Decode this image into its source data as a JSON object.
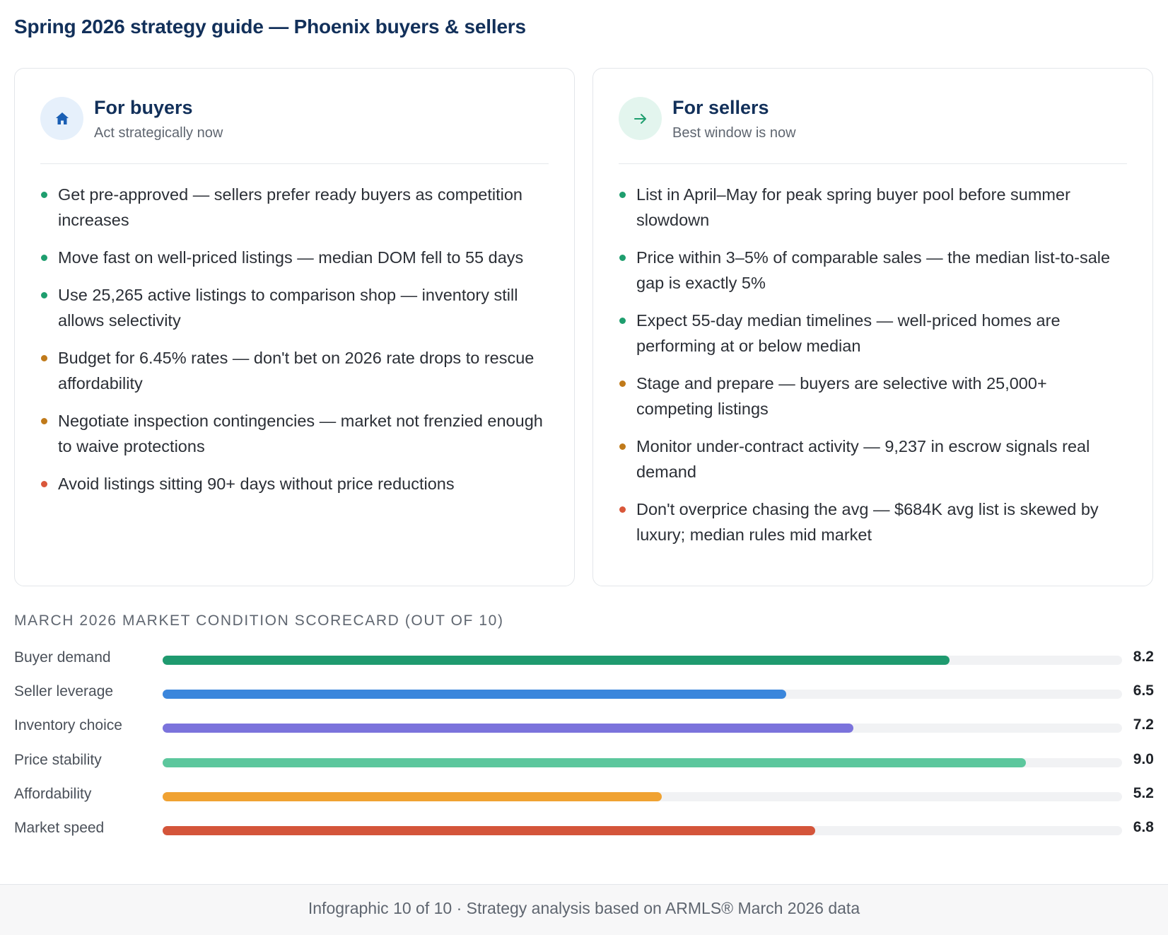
{
  "page": {
    "title": "Spring 2026 strategy guide — Phoenix buyers & sellers"
  },
  "buyers": {
    "icon": "home-icon",
    "accent": "#1a5fb4",
    "title": "For buyers",
    "subtitle": "Act strategically now",
    "items": [
      {
        "text": "Get pre-approved — sellers prefer ready buyers as competition increases",
        "status": "positive",
        "color": "#1e9e6e"
      },
      {
        "text": "Move fast on well-priced listings — median DOM fell to 55 days",
        "status": "positive",
        "color": "#1e9e6e"
      },
      {
        "text": "Use 25,265 active listings to comparison shop — inventory still allows selectivity",
        "status": "positive",
        "color": "#1e9e6e"
      },
      {
        "text": "Budget for 6.45% rates — don't bet on 2026 rate drops to rescue affordability",
        "status": "caution",
        "color": "#c07a1a"
      },
      {
        "text": "Negotiate inspection contingencies — market not frenzied enough to waive protections",
        "status": "caution",
        "color": "#c07a1a"
      },
      {
        "text": "Avoid listings sitting 90+ days without price reductions",
        "status": "warning",
        "color": "#d9573a"
      }
    ]
  },
  "sellers": {
    "icon": "arrow-right-icon",
    "accent": "#1e9e6e",
    "title": "For sellers",
    "subtitle": "Best window is now",
    "items": [
      {
        "text": "List in April–May for peak spring buyer pool before summer slowdown",
        "status": "positive",
        "color": "#1e9e6e"
      },
      {
        "text": "Price within 3–5% of comparable sales — the median list-to-sale gap is exactly 5%",
        "status": "positive",
        "color": "#1e9e6e"
      },
      {
        "text": "Expect 55-day median timelines — well-priced homes are performing at or below median",
        "status": "positive",
        "color": "#1e9e6e"
      },
      {
        "text": "Stage and prepare — buyers are selective with 25,000+ competing listings",
        "status": "caution",
        "color": "#c07a1a"
      },
      {
        "text": "Monitor under-contract activity — 9,237 in escrow signals real demand",
        "status": "caution",
        "color": "#c07a1a"
      },
      {
        "text": "Don't overprice chasing the avg — $684K avg list is skewed by luxury; median rules mid market",
        "status": "warning",
        "color": "#d9573a"
      }
    ]
  },
  "scorecard": {
    "title": "MARCH 2026 MARKET CONDITION SCORECARD (OUT OF 10)",
    "max": 10,
    "rows": [
      {
        "label": "Buyer demand",
        "value": 8.2,
        "display": "8.2",
        "color": "#1f9a6f"
      },
      {
        "label": "Seller leverage",
        "value": 6.5,
        "display": "6.5",
        "color": "#3a86dc"
      },
      {
        "label": "Inventory choice",
        "value": 7.2,
        "display": "7.2",
        "color": "#7b73dc"
      },
      {
        "label": "Price stability",
        "value": 9.0,
        "display": "9.0",
        "color": "#5cc79d"
      },
      {
        "label": "Affordability",
        "value": 5.2,
        "display": "5.2",
        "color": "#f0a232"
      },
      {
        "label": "Market speed",
        "value": 6.8,
        "display": "6.8",
        "color": "#d4553a"
      }
    ]
  },
  "footer": {
    "text": "Infographic 10 of 10 · Strategy analysis based on ARMLS® March 2026 data"
  }
}
